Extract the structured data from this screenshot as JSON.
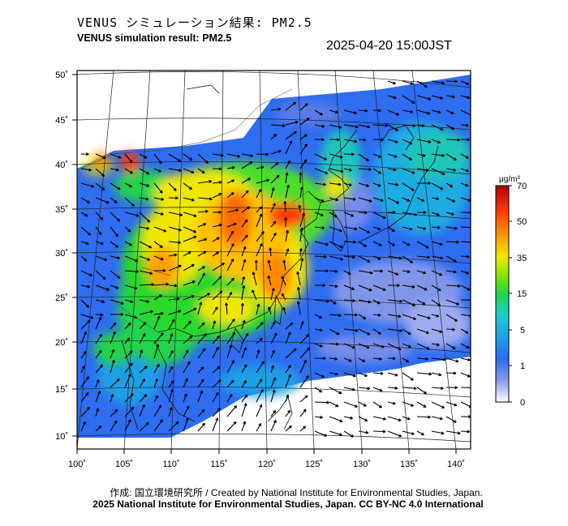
{
  "header": {
    "title_jp": "VENUS シミュレーション結果: PM2.5",
    "title_en": "VENUS simulation result: PM2.5",
    "timestamp": "2025-04-20 15:00JST"
  },
  "map": {
    "lat_labels": [
      "50˚",
      "45˚",
      "40˚",
      "35˚",
      "30˚",
      "25˚",
      "20˚",
      "15˚",
      "10˚"
    ],
    "lon_labels": [
      "100˚",
      "105˚",
      "110˚",
      "115˚",
      "120˚",
      "125˚",
      "130˚",
      "135˚",
      "140˚"
    ]
  },
  "colorbar": {
    "unit": "μg/m³",
    "ticks": [
      "70",
      "50",
      "35",
      "15",
      "5",
      "1",
      "0"
    ],
    "colors": [
      "#cc0000",
      "#ff5a00",
      "#ff9c00",
      "#f5e400",
      "#a8f000",
      "#2bd82b",
      "#1ad0b8",
      "#1fa6e6",
      "#2e68f0",
      "#6a7fe8",
      "#b8bff5",
      "#ffffff"
    ]
  },
  "footer": {
    "credit": "作成: 国立環境研究所 / Created by National Institute for Environmental Studies, Japan.",
    "copyright": "2025 National Institute for Environmental Studies, Japan. CC BY-NC 4.0 International"
  }
}
